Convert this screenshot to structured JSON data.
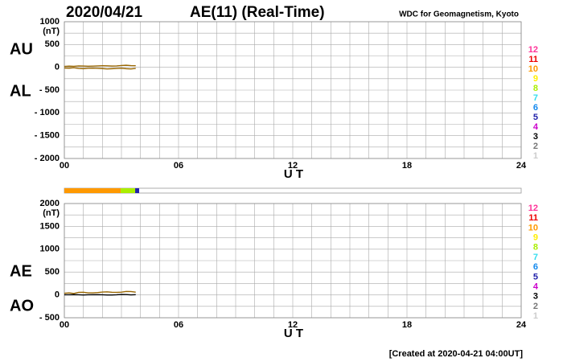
{
  "header": {
    "date": "2020/04/21",
    "title": "AE(11) (Real-Time)",
    "source": "WDC for Geomagnetism, Kyoto"
  },
  "footer": "[Created at 2020-04-21 04:00UT]",
  "chart_data": [
    {
      "type": "line",
      "unit": "(nT)",
      "xlabel": "U T",
      "x": [
        0,
        0.25,
        0.5,
        0.75,
        1,
        1.25,
        1.5,
        1.75,
        2,
        2.25,
        2.5,
        2.75,
        3,
        3.25,
        3.5,
        3.75
      ],
      "series": [
        {
          "name": "AU",
          "color": "#996600",
          "values": [
            20,
            25,
            22,
            30,
            28,
            24,
            26,
            30,
            35,
            32,
            28,
            30,
            40,
            45,
            38,
            35
          ]
        },
        {
          "name": "AL",
          "color": "#996600",
          "values": [
            -15,
            -20,
            -10,
            -25,
            -30,
            -20,
            -18,
            -22,
            -28,
            -35,
            -30,
            -25,
            -20,
            -30,
            -35,
            -25
          ]
        }
      ],
      "xlim": [
        0,
        24
      ],
      "xticks": [
        {
          "value": 0,
          "label": "00"
        },
        {
          "value": 6,
          "label": "06"
        },
        12,
        18,
        24
      ],
      "ylim": [
        -2000,
        1000
      ],
      "yticks": [
        {
          "value": -2000,
          "label": "- 2000"
        },
        {
          "value": -1500,
          "label": "- 1500"
        },
        {
          "value": -1000,
          "label": "- 1000"
        },
        {
          "value": -500,
          "label": "- 500"
        },
        0,
        500,
        1000
      ],
      "grid": true,
      "station_legend": [
        {
          "count": 12,
          "color": "#ff3399"
        },
        {
          "count": 11,
          "color": "#ee0000"
        },
        {
          "count": 10,
          "color": "#ff9900"
        },
        {
          "count": 9,
          "color": "#ffee00"
        },
        {
          "count": 8,
          "color": "#aaee00"
        },
        {
          "count": 7,
          "color": "#33ddee"
        },
        {
          "count": 6,
          "color": "#1188ee"
        },
        {
          "count": 5,
          "color": "#2222aa"
        },
        {
          "count": 4,
          "color": "#cc00cc"
        },
        {
          "count": 3,
          "color": "#000000"
        },
        {
          "count": 2,
          "color": "#777777"
        },
        {
          "count": 1,
          "color": "#cccccc"
        }
      ]
    },
    {
      "type": "line",
      "unit": "(nT)",
      "xlabel": "U T",
      "x": [
        0,
        0.25,
        0.5,
        0.75,
        1,
        1.25,
        1.5,
        1.75,
        2,
        2.25,
        2.5,
        2.75,
        3,
        3.25,
        3.5,
        3.75
      ],
      "series": [
        {
          "name": "AE",
          "color": "#996600",
          "values": [
            35,
            45,
            32,
            55,
            58,
            44,
            44,
            52,
            63,
            67,
            58,
            55,
            60,
            75,
            73,
            60
          ]
        },
        {
          "name": "AO",
          "color": "#000000",
          "values": [
            2.5,
            2.5,
            6,
            2.5,
            -1,
            2,
            4,
            4,
            3.5,
            -1.5,
            -1,
            2.5,
            10,
            7.5,
            1.5,
            5
          ]
        }
      ],
      "xlim": [
        0,
        24
      ],
      "xticks": [
        {
          "value": 0,
          "label": "00"
        },
        {
          "value": 6,
          "label": "06"
        },
        12,
        18,
        24
      ],
      "ylim": [
        -500,
        2000
      ],
      "yticks": [
        {
          "value": -500,
          "label": "- 500"
        },
        0,
        500,
        1000,
        1500,
        2000
      ],
      "grid": true,
      "coverage": {
        "bins": [
          0,
          2.96,
          3.72,
          3.93
        ],
        "stations": [
          10,
          8,
          5
        ]
      },
      "station_legend": [
        {
          "count": 12,
          "color": "#ff3399"
        },
        {
          "count": 11,
          "color": "#ee0000"
        },
        {
          "count": 10,
          "color": "#ff9900"
        },
        {
          "count": 9,
          "color": "#ffee00"
        },
        {
          "count": 8,
          "color": "#aaee00"
        },
        {
          "count": 7,
          "color": "#33ddee"
        },
        {
          "count": 6,
          "color": "#1188ee"
        },
        {
          "count": 5,
          "color": "#2222aa"
        },
        {
          "count": 4,
          "color": "#cc00cc"
        },
        {
          "count": 3,
          "color": "#000000"
        },
        {
          "count": 2,
          "color": "#777777"
        },
        {
          "count": 1,
          "color": "#cccccc"
        }
      ]
    }
  ]
}
